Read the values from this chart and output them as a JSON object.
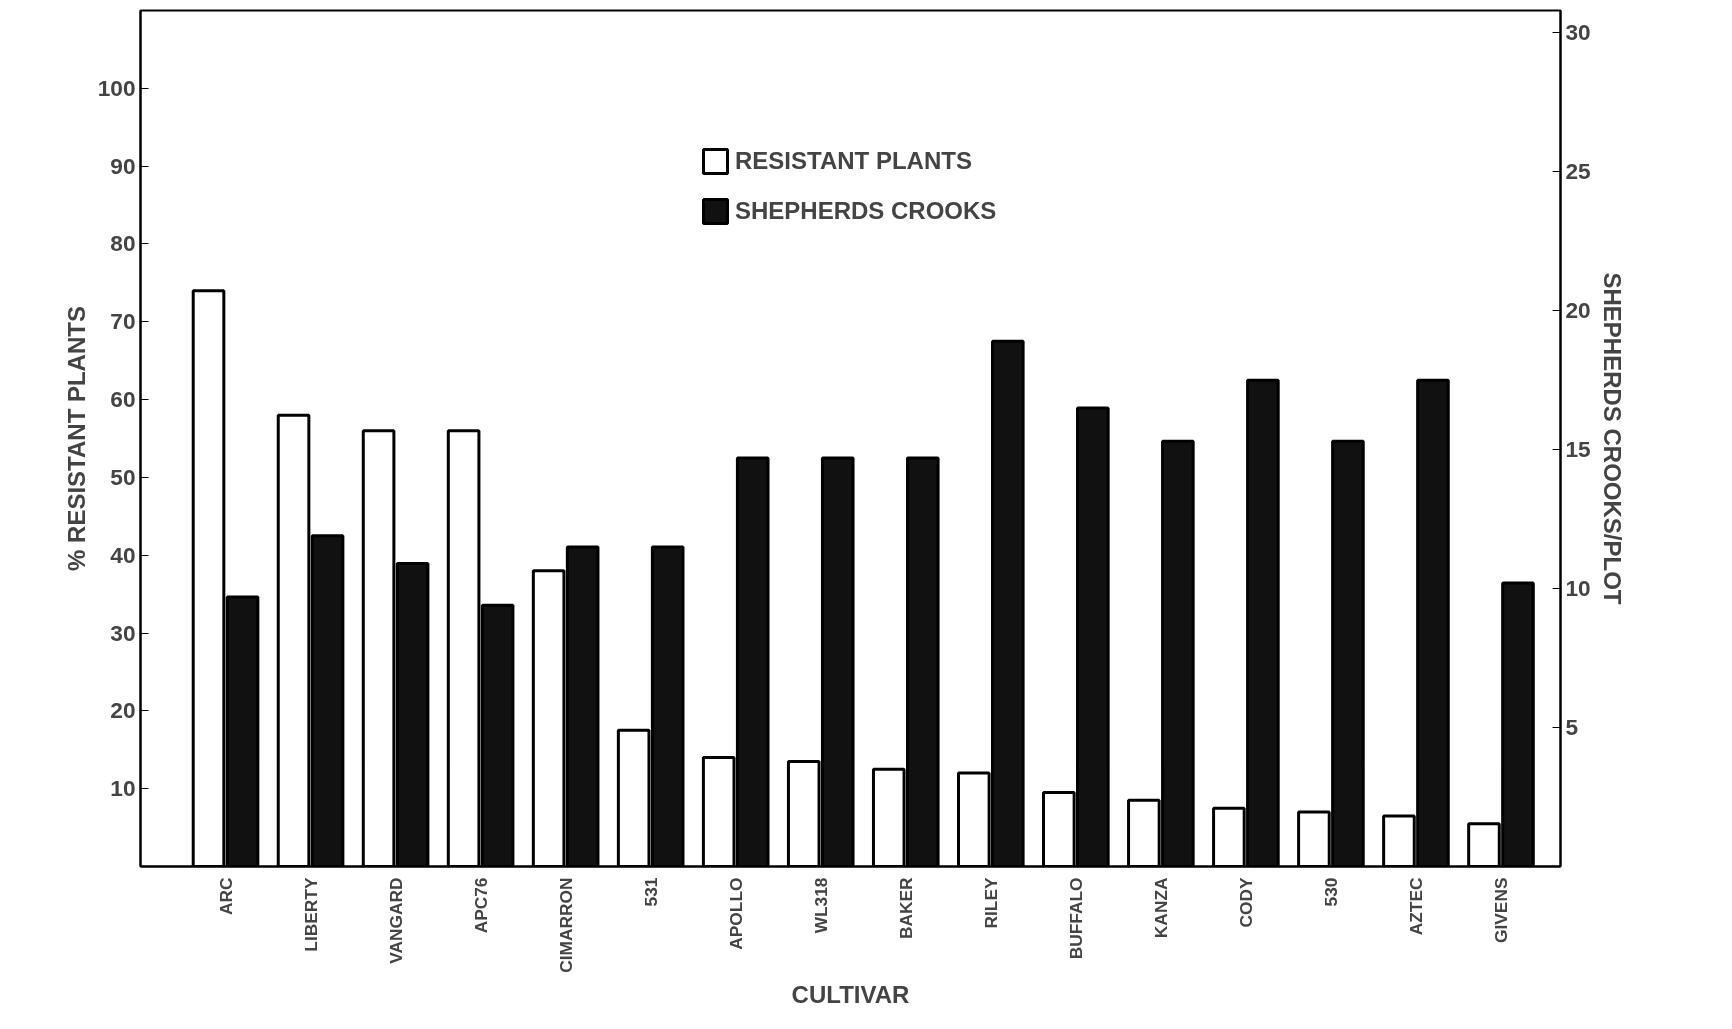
{
  "chart_data": {
    "type": "bar",
    "xlabel": "CULTIVAR",
    "ylabel": "% RESISTANT PLANTS",
    "y2label": "SHEPHERDS CROOKS/PLOT",
    "categories": [
      "ARC",
      "LIBERTY",
      "VANGARD",
      "APC76",
      "CIMARRON",
      "531",
      "APOLLO",
      "WL318",
      "BAKER",
      "RILEY",
      "BUFFALO",
      "KANZA",
      "CODY",
      "530",
      "AZTEC",
      "GIVENS"
    ],
    "series": [
      {
        "name": "RESISTANT PLANTS",
        "color": "#ffffff",
        "values": [
          74,
          58,
          56,
          56,
          38,
          17.5,
          14,
          13.5,
          12.5,
          12,
          9.5,
          8.5,
          7.5,
          7,
          6.5,
          5.5
        ]
      },
      {
        "name": "SHEPHERDS CROOKS",
        "color": "#111111",
        "axis": "y2",
        "values": [
          9.7,
          11.9,
          10.9,
          9.4,
          11.5,
          11.5,
          14.7,
          14.7,
          14.7,
          18.9,
          16.5,
          15.3,
          17.5,
          15.3,
          17.5,
          10.2
        ]
      }
    ],
    "ylim": [
      0,
      110
    ],
    "yticks": [
      10,
      20,
      30,
      40,
      50,
      60,
      70,
      80,
      90,
      100
    ],
    "y2lim": [
      0,
      30.8
    ],
    "y2ticks": [
      5,
      10,
      15,
      20,
      25,
      30
    ],
    "grid": false,
    "legend": "top right"
  }
}
